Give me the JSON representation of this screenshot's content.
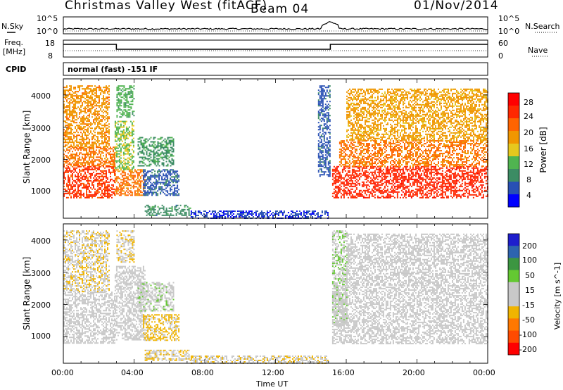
{
  "header": {
    "title": "Christmas Valley West (fitACF)",
    "beam": "Beam 04",
    "date": "01/Nov/2014"
  },
  "nsky_panel": {
    "left_label": "N.Sky",
    "right_label": "N.Search",
    "left_ticks": [
      "10^5",
      "10^0"
    ],
    "right_ticks": [
      "10^5",
      "10^0"
    ]
  },
  "freq_panel": {
    "left_label_1": "Freq.",
    "left_label_2": "[MHz]",
    "right_label": "Nave",
    "left_ticks": [
      "18",
      "8"
    ],
    "right_ticks": [
      "60",
      "0"
    ]
  },
  "cpid": {
    "label": "CPID",
    "value": "normal (fast) -151 IF"
  },
  "time_axis": {
    "label": "Time UT",
    "ticks": [
      "00:00",
      "04:00",
      "08:00",
      "12:00",
      "16:00",
      "20:00",
      "00:00"
    ]
  },
  "power_panel": {
    "ylabel": "Slant Range [km]",
    "yticks": [
      "1000",
      "2000",
      "3000",
      "4000"
    ],
    "colorbar_label": "Power [dB]",
    "colorbar_ticks": [
      "4",
      "8",
      "12",
      "16",
      "20",
      "24",
      "28"
    ]
  },
  "velocity_panel": {
    "ylabel": "Slant Range [km]",
    "yticks": [
      "1000",
      "2000",
      "3000",
      "4000"
    ],
    "colorbar_label": "Velocity [m s^-1]",
    "colorbar_ticks": [
      "200",
      "100",
      "50",
      "15",
      "-15",
      "-50",
      "-100",
      "-200"
    ]
  },
  "colors": {
    "power_scale": [
      "#0000ff",
      "#2850b4",
      "#3c8c64",
      "#50b450",
      "#e6c81e",
      "#f09600",
      "#ff6400",
      "#ff2800",
      "#ff0000"
    ],
    "velocity_scale": [
      "#1e1ecd",
      "#2d64af",
      "#3c9641",
      "#64c832",
      "#c8c8c8",
      "#c8c8c8",
      "#f0b400",
      "#ff7800",
      "#ff4b00",
      "#ff0000"
    ]
  },
  "chart_data": [
    {
      "type": "heatmap",
      "name": "power",
      "title": "Power [dB]",
      "xlabel": "Time UT",
      "ylabel": "Slant Range [km]",
      "xlim": [
        0,
        24
      ],
      "ylim": [
        180,
        4500
      ],
      "zlim": [
        0,
        32
      ],
      "regions": [
        {
          "t0": 0.0,
          "t1": 2.9,
          "r0": 800,
          "r1": 1800,
          "z": 26
        },
        {
          "t0": 0.0,
          "t1": 2.9,
          "r0": 1800,
          "r1": 2400,
          "z": 22
        },
        {
          "t0": 0.0,
          "t1": 2.6,
          "r0": 2400,
          "r1": 4300,
          "z": 20
        },
        {
          "t0": 2.9,
          "t1": 4.6,
          "r0": 900,
          "r1": 1700,
          "z": 22
        },
        {
          "t0": 2.9,
          "t1": 4.0,
          "r0": 1700,
          "r1": 3200,
          "z": 14
        },
        {
          "t0": 3.0,
          "t1": 4.0,
          "r0": 3300,
          "r1": 4300,
          "z": 12
        },
        {
          "t0": 4.2,
          "t1": 6.2,
          "r0": 1800,
          "r1": 2700,
          "z": 10
        },
        {
          "t0": 4.5,
          "t1": 6.5,
          "r0": 900,
          "r1": 1700,
          "z": 6
        },
        {
          "t0": 4.6,
          "t1": 7.2,
          "r0": 280,
          "r1": 600,
          "z": 9
        },
        {
          "t0": 7.2,
          "t1": 15.0,
          "r0": 200,
          "r1": 420,
          "z": 4
        },
        {
          "t0": 14.4,
          "t1": 15.1,
          "r0": 1500,
          "r1": 4300,
          "z": 6
        },
        {
          "t0": 15.2,
          "t1": 24.0,
          "r0": 800,
          "r1": 1800,
          "z": 27
        },
        {
          "t0": 15.6,
          "t1": 24.0,
          "r0": 1800,
          "r1": 2600,
          "z": 22
        },
        {
          "t0": 16.0,
          "t1": 24.0,
          "r0": 2600,
          "r1": 4200,
          "z": 19
        }
      ]
    },
    {
      "type": "heatmap",
      "name": "velocity",
      "title": "Velocity [m s^-1]",
      "xlabel": "Time UT",
      "ylabel": "Slant Range [km]",
      "xlim": [
        0,
        24
      ],
      "ylim": [
        180,
        4500
      ],
      "zlim": [
        -250,
        250
      ],
      "regions": [
        {
          "t0": 0.0,
          "t1": 2.9,
          "r0": 800,
          "r1": 2400,
          "z": 0
        },
        {
          "t0": 0.0,
          "t1": 2.6,
          "r0": 2400,
          "r1": 4300,
          "z": -40
        },
        {
          "t0": 2.9,
          "t1": 4.6,
          "r0": 900,
          "r1": 3200,
          "z": 0
        },
        {
          "t0": 3.0,
          "t1": 4.0,
          "r0": 3300,
          "r1": 4300,
          "z": -40
        },
        {
          "t0": 4.2,
          "t1": 6.2,
          "r0": 1800,
          "r1": 2700,
          "z": 30
        },
        {
          "t0": 4.5,
          "t1": 6.5,
          "r0": 900,
          "r1": 1700,
          "z": -60
        },
        {
          "t0": 4.6,
          "t1": 7.2,
          "r0": 280,
          "r1": 600,
          "z": -40
        },
        {
          "t0": 7.2,
          "t1": 15.0,
          "r0": 200,
          "r1": 420,
          "z": -40
        },
        {
          "t0": 15.2,
          "t1": 16.0,
          "r0": 1400,
          "r1": 4300,
          "z": 40
        },
        {
          "t0": 15.2,
          "t1": 24.0,
          "r0": 800,
          "r1": 2600,
          "z": 0
        },
        {
          "t0": 16.0,
          "t1": 24.0,
          "r0": 2600,
          "r1": 4200,
          "z": 0
        }
      ]
    }
  ]
}
